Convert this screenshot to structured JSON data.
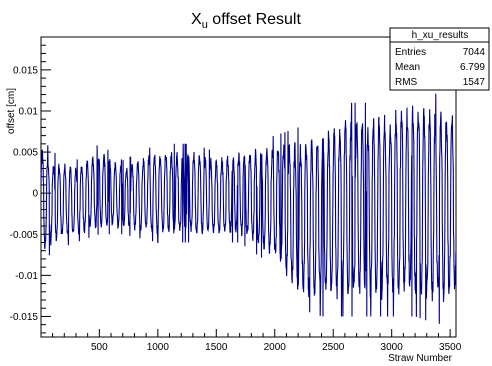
{
  "chart_data": {
    "type": "line",
    "title_main": "X",
    "title_sub": "u",
    "title_rest": " offset Result",
    "xlabel": "Straw Number",
    "ylabel": "offset [cm]",
    "xlim": [
      1,
      3550
    ],
    "ylim": [
      -0.0175,
      0.019
    ],
    "x_ticks": [
      500,
      1000,
      1500,
      2000,
      2500,
      3000,
      3500
    ],
    "x_tick_labels": [
      "500",
      "1000",
      "1500",
      "2000",
      "2500",
      "3000",
      "3500"
    ],
    "y_ticks": [
      -0.015,
      -0.01,
      -0.005,
      0,
      0.005,
      0.01,
      0.015
    ],
    "y_tick_labels": [
      "-0.015",
      "-0.01",
      "-0.005",
      "0",
      "0.005",
      "0.01",
      "0.015"
    ],
    "line_color": "#00008B",
    "grid": false,
    "envelope": {
      "x": [
        1,
        100,
        300,
        500,
        700,
        1000,
        1300,
        1500,
        1700,
        2000,
        2200,
        2400,
        2600,
        2800,
        3000,
        3200,
        3400,
        3550
      ],
      "upper": [
        0.007,
        0.005,
        0.004,
        0.006,
        0.004,
        0.006,
        0.006,
        0.005,
        0.006,
        0.007,
        0.008,
        0.009,
        0.011,
        0.011,
        0.012,
        0.013,
        0.012,
        0.012
      ],
      "lower": [
        -0.009,
        -0.007,
        -0.006,
        -0.005,
        -0.005,
        -0.006,
        -0.006,
        -0.006,
        -0.006,
        -0.009,
        -0.014,
        -0.015,
        -0.015,
        -0.015,
        -0.015,
        -0.015,
        -0.016,
        -0.014
      ]
    },
    "oscillation_period": 48,
    "stats_box": {
      "name": "h_xu_results",
      "rows": [
        {
          "label": "Entries",
          "value": "7044"
        },
        {
          "label": "Mean",
          "value": "6.799"
        },
        {
          "label": "RMS",
          "value": "1547"
        }
      ]
    }
  }
}
